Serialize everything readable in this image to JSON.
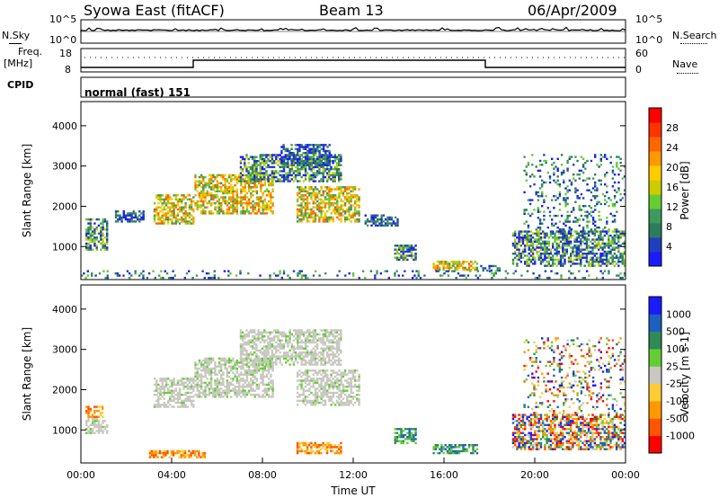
{
  "header": {
    "station": "Syowa East (fitACF)",
    "beam": "Beam 13",
    "date": "06/Apr/2009"
  },
  "noise_panel": {
    "left_label": "N.Sky",
    "right_label": "N.Search",
    "axis_top": "10^5",
    "axis_bottom": "10^0"
  },
  "freq_panel": {
    "left_label_1": "Freq.",
    "left_label_2": "[MHz]",
    "left_ticks": [
      "18",
      "8"
    ],
    "right_label": "Nave",
    "right_ticks": [
      "60",
      "0"
    ]
  },
  "cpid": {
    "label": "CPID",
    "text": "normal (fast) 151"
  },
  "chart_data": [
    {
      "type": "heatmap",
      "name": "power",
      "ylabel": "Slant Range [km]",
      "ylim": [
        180,
        4600
      ],
      "yticks": [
        "1000",
        "2000",
        "3000",
        "4000"
      ],
      "xlim_hours": [
        0,
        24
      ],
      "colorbar": {
        "label": "Power [dB]",
        "ticks": [
          "4",
          "8",
          "12",
          "16",
          "20",
          "24",
          "28"
        ],
        "colors": [
          "#1a1aff",
          "#1f3fbf",
          "#2e7a5e",
          "#3c9a5a",
          "#66cc33",
          "#cccc00",
          "#ffcc00",
          "#ff9900",
          "#ff6600",
          "#ff3300",
          "#ff0000"
        ]
      },
      "regions": [
        {
          "h0": 0.2,
          "h1": 1.2,
          "r0": 900,
          "r1": 1700,
          "level": "mid"
        },
        {
          "h0": 1.5,
          "h1": 2.8,
          "r0": 1600,
          "r1": 1900,
          "level": "low"
        },
        {
          "h0": 3.2,
          "h1": 5.0,
          "r0": 1550,
          "r1": 2300,
          "level": "high"
        },
        {
          "h0": 5.0,
          "h1": 8.5,
          "r0": 1800,
          "r1": 2800,
          "level": "high"
        },
        {
          "h0": 7.0,
          "h1": 11.5,
          "r0": 2600,
          "r1": 3300,
          "level": "mid"
        },
        {
          "h0": 8.8,
          "h1": 11.0,
          "r0": 3000,
          "r1": 3550,
          "level": "low"
        },
        {
          "h0": 9.5,
          "h1": 12.3,
          "r0": 1600,
          "r1": 2500,
          "level": "high"
        },
        {
          "h0": 12.5,
          "h1": 14.0,
          "r0": 1500,
          "r1": 1800,
          "level": "low"
        },
        {
          "h0": 13.8,
          "h1": 14.8,
          "r0": 650,
          "r1": 1050,
          "level": "mid"
        },
        {
          "h0": 15.5,
          "h1": 17.5,
          "r0": 400,
          "r1": 650,
          "level": "high"
        },
        {
          "h0": 17.5,
          "h1": 18.5,
          "r0": 380,
          "r1": 550,
          "level": "low"
        },
        {
          "h0": 19.0,
          "h1": 24.0,
          "r0": 500,
          "r1": 1400,
          "level": "mid"
        },
        {
          "h0": 19.5,
          "h1": 24.0,
          "r0": 1400,
          "r1": 3300,
          "level": "sparse"
        },
        {
          "h0": 0.0,
          "h1": 24.0,
          "r0": 200,
          "r1": 420,
          "level": "sparse"
        }
      ]
    },
    {
      "type": "heatmap",
      "name": "velocity",
      "ylabel": "Slant Range [km]",
      "xlabel": "Time UT",
      "ylim": [
        180,
        4600
      ],
      "yticks": [
        "1000",
        "2000",
        "3000",
        "4000"
      ],
      "xlim_hours": [
        0,
        24
      ],
      "xticks": [
        "00:00",
        "04:00",
        "08:00",
        "12:00",
        "16:00",
        "20:00",
        "00:00"
      ],
      "colorbar": {
        "label": "Velocity [m s-1]",
        "ticks": [
          "-1000",
          "-500",
          "-100",
          "-25",
          "25",
          "100",
          "500",
          "1000"
        ],
        "colors": [
          "#ff0000",
          "#ff5500",
          "#ff9900",
          "#ffcc33",
          "#c8c8c0",
          "#66cc33",
          "#2e8b57",
          "#1f5fbf",
          "#1a1aff"
        ]
      },
      "regions": [
        {
          "h0": 0.2,
          "h1": 1.0,
          "r0": 1300,
          "r1": 1600,
          "level": "neg"
        },
        {
          "h0": 0.2,
          "h1": 1.2,
          "r0": 900,
          "r1": 1300,
          "level": "zero"
        },
        {
          "h0": 3.2,
          "h1": 5.0,
          "r0": 1550,
          "r1": 2300,
          "level": "zero"
        },
        {
          "h0": 5.0,
          "h1": 8.5,
          "r0": 1800,
          "r1": 2800,
          "level": "zero"
        },
        {
          "h0": 7.0,
          "h1": 11.5,
          "r0": 2600,
          "r1": 3500,
          "level": "zero"
        },
        {
          "h0": 9.5,
          "h1": 12.3,
          "r0": 1600,
          "r1": 2500,
          "level": "zero"
        },
        {
          "h0": 3.0,
          "h1": 5.5,
          "r0": 300,
          "r1": 500,
          "level": "neg"
        },
        {
          "h0": 9.5,
          "h1": 11.5,
          "r0": 400,
          "r1": 700,
          "level": "neg"
        },
        {
          "h0": 13.8,
          "h1": 14.8,
          "r0": 650,
          "r1": 1050,
          "level": "pos"
        },
        {
          "h0": 15.5,
          "h1": 17.5,
          "r0": 400,
          "r1": 650,
          "level": "pos"
        },
        {
          "h0": 19.0,
          "h1": 24.0,
          "r0": 500,
          "r1": 1400,
          "level": "mixed"
        },
        {
          "h0": 19.5,
          "h1": 24.0,
          "r0": 1400,
          "r1": 3300,
          "level": "sparse"
        }
      ]
    }
  ]
}
